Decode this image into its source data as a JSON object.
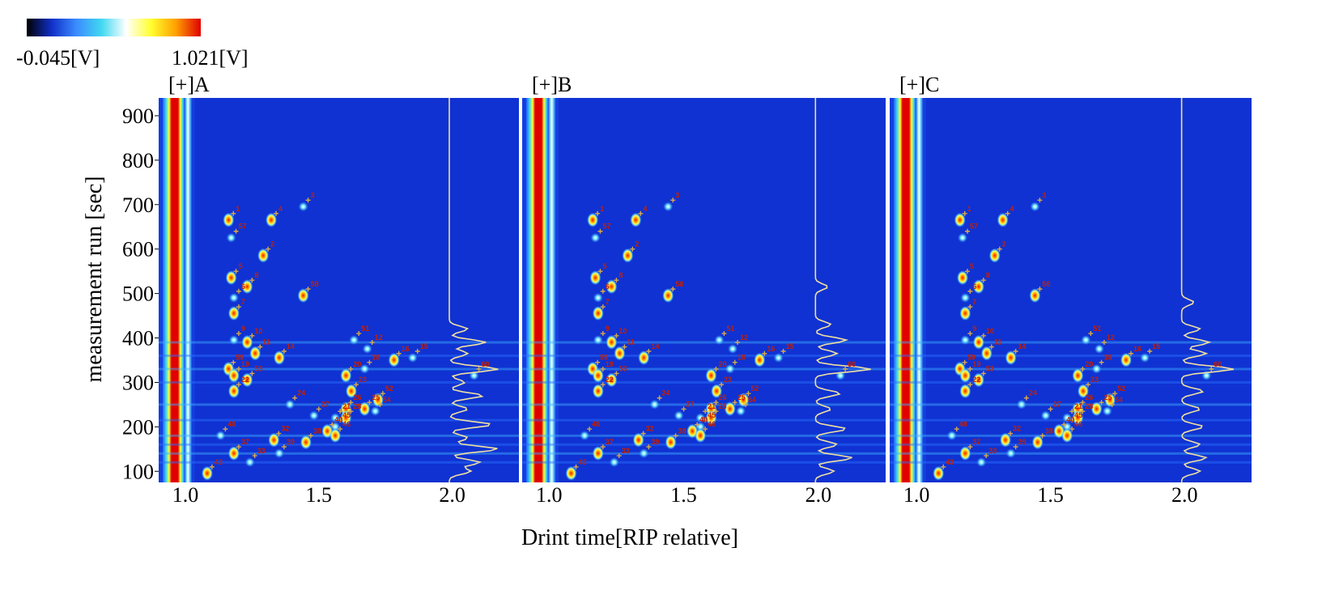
{
  "chart_data": {
    "type": "heatmap",
    "xlabel": "Drint time[RIP relative]",
    "ylabel": "measurement run [sec]",
    "color_scale": {
      "min_label": "-0.045[V]",
      "max_label": "1.021[V]",
      "colors": [
        "#000000",
        "#1030c8",
        "#3c8cff",
        "#40d8f0",
        "#ffffff",
        "#ffff30",
        "#ffa000",
        "#e00000"
      ]
    },
    "xlim": [
      0.9,
      2.25
    ],
    "ylim": [
      75,
      940
    ],
    "x_ticks": [
      {
        "value": 1.0,
        "label": "1.0"
      },
      {
        "value": 1.5,
        "label": "1.5"
      },
      {
        "value": 2.0,
        "label": "2.0"
      }
    ],
    "y_ticks": [
      {
        "value": 100,
        "label": "100"
      },
      {
        "value": 200,
        "label": "200"
      },
      {
        "value": 300,
        "label": "300"
      },
      {
        "value": 400,
        "label": "400"
      },
      {
        "value": 500,
        "label": "500"
      },
      {
        "value": 600,
        "label": "600"
      },
      {
        "value": 700,
        "label": "700"
      },
      {
        "value": 800,
        "label": "800"
      },
      {
        "value": 900,
        "label": "900"
      }
    ],
    "panels": [
      {
        "label": "[+]A",
        "peaks": [
          {
            "id": "1",
            "x": 1.18,
            "y": 680
          },
          {
            "id": "57",
            "x": 1.19,
            "y": 640
          },
          {
            "id": "4",
            "x": 1.34,
            "y": 680
          },
          {
            "id": "3",
            "x": 1.46,
            "y": 710
          },
          {
            "id": "2",
            "x": 1.31,
            "y": 600
          },
          {
            "id": "5",
            "x": 1.19,
            "y": 550
          },
          {
            "id": "8",
            "x": 1.25,
            "y": 530
          },
          {
            "id": "6",
            "x": 1.2,
            "y": 505
          },
          {
            "id": "58",
            "x": 1.46,
            "y": 510
          },
          {
            "id": "7",
            "x": 1.2,
            "y": 470
          },
          {
            "id": "9",
            "x": 1.2,
            "y": 410
          },
          {
            "id": "10",
            "x": 1.25,
            "y": 405
          },
          {
            "id": "11",
            "x": 1.28,
            "y": 380
          },
          {
            "id": "14",
            "x": 1.37,
            "y": 370
          },
          {
            "id": "51",
            "x": 1.65,
            "y": 410
          },
          {
            "id": "12",
            "x": 1.7,
            "y": 390
          },
          {
            "id": "16",
            "x": 1.8,
            "y": 365
          },
          {
            "id": "15",
            "x": 1.87,
            "y": 370
          },
          {
            "id": "18",
            "x": 1.69,
            "y": 345
          },
          {
            "id": "20",
            "x": 1.62,
            "y": 330
          },
          {
            "id": "60",
            "x": 2.1,
            "y": 330
          },
          {
            "id": "59",
            "x": 1.18,
            "y": 345
          },
          {
            "id": "19",
            "x": 1.2,
            "y": 330
          },
          {
            "id": "53",
            "x": 1.25,
            "y": 320
          },
          {
            "id": "22",
            "x": 1.2,
            "y": 295
          },
          {
            "id": "23",
            "x": 1.64,
            "y": 295
          },
          {
            "id": "52",
            "x": 1.74,
            "y": 275
          },
          {
            "id": "24",
            "x": 1.41,
            "y": 265
          },
          {
            "id": "25",
            "x": 1.69,
            "y": 255
          },
          {
            "id": "54",
            "x": 1.73,
            "y": 250
          },
          {
            "id": "26",
            "x": 1.62,
            "y": 255
          },
          {
            "id": "27",
            "x": 1.5,
            "y": 240
          },
          {
            "id": "21",
            "x": 1.58,
            "y": 235
          },
          {
            "id": "28",
            "x": 1.62,
            "y": 235
          },
          {
            "id": "45",
            "x": 1.58,
            "y": 215
          },
          {
            "id": "40",
            "x": 1.55,
            "y": 205
          },
          {
            "id": "46",
            "x": 1.58,
            "y": 195
          },
          {
            "id": "48",
            "x": 1.15,
            "y": 195
          },
          {
            "id": "32",
            "x": 1.35,
            "y": 185
          },
          {
            "id": "38",
            "x": 1.47,
            "y": 180
          },
          {
            "id": "37",
            "x": 1.2,
            "y": 155
          },
          {
            "id": "39",
            "x": 1.37,
            "y": 155
          },
          {
            "id": "33",
            "x": 1.26,
            "y": 135
          },
          {
            "id": "43",
            "x": 1.1,
            "y": 110
          }
        ],
        "tic_peaks": [
          {
            "y": 100,
            "v": 0.35
          },
          {
            "y": 120,
            "v": 0.5
          },
          {
            "y": 150,
            "v": 0.8
          },
          {
            "y": 175,
            "v": 0.3
          },
          {
            "y": 205,
            "v": 0.7
          },
          {
            "y": 240,
            "v": 0.3
          },
          {
            "y": 270,
            "v": 0.55
          },
          {
            "y": 300,
            "v": 0.25
          },
          {
            "y": 330,
            "v": 0.8
          },
          {
            "y": 365,
            "v": 0.3
          },
          {
            "y": 390,
            "v": 0.6
          },
          {
            "y": 420,
            "v": 0.3
          }
        ]
      },
      {
        "label": "[+]B",
        "peaks": [
          {
            "id": "1",
            "x": 1.18,
            "y": 680
          },
          {
            "id": "57",
            "x": 1.19,
            "y": 640
          },
          {
            "id": "4",
            "x": 1.34,
            "y": 680
          },
          {
            "id": "3",
            "x": 1.46,
            "y": 710
          },
          {
            "id": "2",
            "x": 1.31,
            "y": 600
          },
          {
            "id": "5",
            "x": 1.19,
            "y": 550
          },
          {
            "id": "8",
            "x": 1.25,
            "y": 530
          },
          {
            "id": "6",
            "x": 1.2,
            "y": 505
          },
          {
            "id": "58",
            "x": 1.46,
            "y": 510
          },
          {
            "id": "7",
            "x": 1.2,
            "y": 470
          },
          {
            "id": "9",
            "x": 1.2,
            "y": 410
          },
          {
            "id": "10",
            "x": 1.25,
            "y": 405
          },
          {
            "id": "11",
            "x": 1.28,
            "y": 380
          },
          {
            "id": "14",
            "x": 1.37,
            "y": 370
          },
          {
            "id": "51",
            "x": 1.65,
            "y": 410
          },
          {
            "id": "12",
            "x": 1.7,
            "y": 390
          },
          {
            "id": "16",
            "x": 1.8,
            "y": 365
          },
          {
            "id": "15",
            "x": 1.87,
            "y": 370
          },
          {
            "id": "18",
            "x": 1.69,
            "y": 345
          },
          {
            "id": "20",
            "x": 1.62,
            "y": 330
          },
          {
            "id": "60",
            "x": 2.1,
            "y": 330
          },
          {
            "id": "59",
            "x": 1.18,
            "y": 345
          },
          {
            "id": "19",
            "x": 1.2,
            "y": 330
          },
          {
            "id": "53",
            "x": 1.25,
            "y": 320
          },
          {
            "id": "22",
            "x": 1.2,
            "y": 295
          },
          {
            "id": "23",
            "x": 1.64,
            "y": 295
          },
          {
            "id": "52",
            "x": 1.74,
            "y": 275
          },
          {
            "id": "24",
            "x": 1.41,
            "y": 265
          },
          {
            "id": "25",
            "x": 1.69,
            "y": 255
          },
          {
            "id": "54",
            "x": 1.73,
            "y": 250
          },
          {
            "id": "26",
            "x": 1.62,
            "y": 255
          },
          {
            "id": "27",
            "x": 1.5,
            "y": 240
          },
          {
            "id": "21",
            "x": 1.58,
            "y": 235
          },
          {
            "id": "28",
            "x": 1.62,
            "y": 235
          },
          {
            "id": "45",
            "x": 1.58,
            "y": 215
          },
          {
            "id": "40",
            "x": 1.55,
            "y": 205
          },
          {
            "id": "46",
            "x": 1.58,
            "y": 195
          },
          {
            "id": "48",
            "x": 1.15,
            "y": 195
          },
          {
            "id": "32",
            "x": 1.35,
            "y": 185
          },
          {
            "id": "38",
            "x": 1.47,
            "y": 180
          },
          {
            "id": "37",
            "x": 1.2,
            "y": 155
          },
          {
            "id": "39",
            "x": 1.37,
            "y": 155
          },
          {
            "id": "33",
            "x": 1.26,
            "y": 135
          },
          {
            "id": "43",
            "x": 1.1,
            "y": 110
          }
        ],
        "tic_peaks": [
          {
            "y": 100,
            "v": 0.3
          },
          {
            "y": 130,
            "v": 0.6
          },
          {
            "y": 160,
            "v": 0.35
          },
          {
            "y": 195,
            "v": 0.5
          },
          {
            "y": 240,
            "v": 0.25
          },
          {
            "y": 275,
            "v": 0.4
          },
          {
            "y": 330,
            "v": 0.9
          },
          {
            "y": 365,
            "v": 0.35
          },
          {
            "y": 395,
            "v": 0.5
          },
          {
            "y": 430,
            "v": 0.25
          },
          {
            "y": 515,
            "v": 0.2
          }
        ]
      },
      {
        "label": "[+]C",
        "peaks": [
          {
            "id": "1",
            "x": 1.18,
            "y": 680
          },
          {
            "id": "57",
            "x": 1.19,
            "y": 640
          },
          {
            "id": "4",
            "x": 1.34,
            "y": 680
          },
          {
            "id": "3",
            "x": 1.46,
            "y": 710
          },
          {
            "id": "2",
            "x": 1.31,
            "y": 600
          },
          {
            "id": "5",
            "x": 1.19,
            "y": 550
          },
          {
            "id": "8",
            "x": 1.25,
            "y": 530
          },
          {
            "id": "6",
            "x": 1.2,
            "y": 505
          },
          {
            "id": "58",
            "x": 1.46,
            "y": 510
          },
          {
            "id": "7",
            "x": 1.2,
            "y": 470
          },
          {
            "id": "9",
            "x": 1.2,
            "y": 410
          },
          {
            "id": "10",
            "x": 1.25,
            "y": 405
          },
          {
            "id": "11",
            "x": 1.28,
            "y": 380
          },
          {
            "id": "14",
            "x": 1.37,
            "y": 370
          },
          {
            "id": "51",
            "x": 1.65,
            "y": 410
          },
          {
            "id": "12",
            "x": 1.7,
            "y": 390
          },
          {
            "id": "16",
            "x": 1.8,
            "y": 365
          },
          {
            "id": "15",
            "x": 1.87,
            "y": 370
          },
          {
            "id": "18",
            "x": 1.69,
            "y": 345
          },
          {
            "id": "20",
            "x": 1.62,
            "y": 330
          },
          {
            "id": "60",
            "x": 2.1,
            "y": 330
          },
          {
            "id": "59",
            "x": 1.18,
            "y": 345
          },
          {
            "id": "19",
            "x": 1.2,
            "y": 330
          },
          {
            "id": "53",
            "x": 1.25,
            "y": 320
          },
          {
            "id": "22",
            "x": 1.2,
            "y": 295
          },
          {
            "id": "23",
            "x": 1.64,
            "y": 295
          },
          {
            "id": "52",
            "x": 1.74,
            "y": 275
          },
          {
            "id": "24",
            "x": 1.41,
            "y": 265
          },
          {
            "id": "25",
            "x": 1.69,
            "y": 255
          },
          {
            "id": "54",
            "x": 1.73,
            "y": 250
          },
          {
            "id": "26",
            "x": 1.62,
            "y": 255
          },
          {
            "id": "27",
            "x": 1.5,
            "y": 240
          },
          {
            "id": "21",
            "x": 1.58,
            "y": 235
          },
          {
            "id": "28",
            "x": 1.62,
            "y": 235
          },
          {
            "id": "45",
            "x": 1.58,
            "y": 215
          },
          {
            "id": "40",
            "x": 1.55,
            "y": 205
          },
          {
            "id": "46",
            "x": 1.58,
            "y": 195
          },
          {
            "id": "48",
            "x": 1.15,
            "y": 195
          },
          {
            "id": "32",
            "x": 1.35,
            "y": 185
          },
          {
            "id": "38",
            "x": 1.47,
            "y": 180
          },
          {
            "id": "37",
            "x": 1.2,
            "y": 155
          },
          {
            "id": "39",
            "x": 1.37,
            "y": 155
          },
          {
            "id": "33",
            "x": 1.26,
            "y": 135
          },
          {
            "id": "43",
            "x": 1.1,
            "y": 110
          }
        ],
        "tic_peaks": [
          {
            "y": 100,
            "v": 0.3
          },
          {
            "y": 130,
            "v": 0.4
          },
          {
            "y": 160,
            "v": 0.3
          },
          {
            "y": 200,
            "v": 0.35
          },
          {
            "y": 240,
            "v": 0.3
          },
          {
            "y": 280,
            "v": 0.35
          },
          {
            "y": 330,
            "v": 0.85
          },
          {
            "y": 365,
            "v": 0.4
          },
          {
            "y": 390,
            "v": 0.45
          },
          {
            "y": 420,
            "v": 0.3
          },
          {
            "y": 480,
            "v": 0.2
          }
        ]
      }
    ],
    "grid": false
  }
}
